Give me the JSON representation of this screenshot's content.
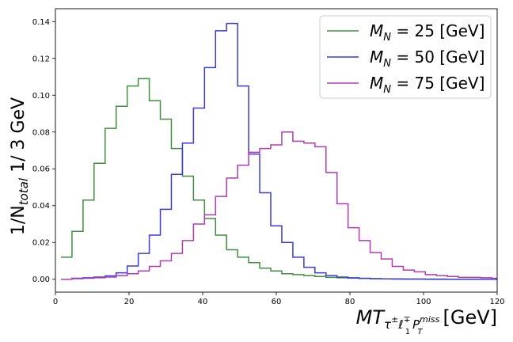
{
  "chart_data": {
    "type": "step",
    "xlabel": {
      "base": "MT",
      "sub1": "τ",
      "sub1_sup": "±",
      "sub2": "ℓ",
      "sub2_sub": "1",
      "sub2_sup": "∓",
      "sub3": "P",
      "sub3_sub": "T",
      "sub3_sup": "miss",
      "unit": "[GeV]"
    },
    "ylabel": {
      "pre": "1/N",
      "sub": "total",
      "post": " 1/ 3 GeV"
    },
    "xlim": [
      0,
      120
    ],
    "ylim": [
      -0.007,
      0.147
    ],
    "xticks": [
      "0",
      "20",
      "40",
      "60",
      "80",
      "100",
      "120"
    ],
    "yticks": [
      "0.00",
      "0.02",
      "0.04",
      "0.06",
      "0.08",
      "0.10",
      "0.12",
      "0.14"
    ],
    "legend_position": "top-right",
    "bin_edges": [
      1.5,
      4.5,
      7.5,
      10.5,
      13.5,
      16.5,
      19.5,
      22.5,
      25.5,
      28.5,
      31.5,
      34.5,
      37.5,
      40.5,
      43.5,
      46.5,
      49.5,
      52.5,
      55.5,
      58.5,
      61.5,
      64.5,
      67.5,
      70.5,
      73.5,
      76.5,
      79.5,
      82.5,
      85.5,
      88.5,
      91.5,
      94.5,
      97.5,
      100.5,
      103.5,
      106.5,
      109.5,
      112.5,
      115.5,
      118.5,
      120
    ],
    "series": [
      {
        "label_pre": "M",
        "label_sub": "N",
        "label_post": " = 25 [GeV]",
        "color": "#3f8f3f",
        "values": [
          0.012,
          0.026,
          0.043,
          0.063,
          0.082,
          0.094,
          0.105,
          0.109,
          0.097,
          0.087,
          0.071,
          0.056,
          0.043,
          0.033,
          0.024,
          0.016,
          0.012,
          0.009,
          0.006,
          0.0045,
          0.003,
          0.0025,
          0.002,
          0.0015,
          0.001,
          0.0008,
          0.0006,
          0.0004,
          0.0003,
          0.0002,
          0.0002,
          0.0001,
          0.0001,
          0.0001,
          0.0001,
          0.0,
          0.0,
          0.0,
          0.0,
          0.0
        ]
      },
      {
        "label_pre": "M",
        "label_sub": "N",
        "label_post": " = 50 [GeV]",
        "color": "#3a3adb",
        "values": [
          0.0,
          0.0005,
          0.0008,
          0.0012,
          0.0018,
          0.0035,
          0.0072,
          0.014,
          0.024,
          0.038,
          0.057,
          0.074,
          0.093,
          0.115,
          0.135,
          0.139,
          0.105,
          0.068,
          0.047,
          0.029,
          0.02,
          0.012,
          0.0065,
          0.0035,
          0.002,
          0.0012,
          0.0008,
          0.0005,
          0.0003,
          0.0002,
          0.0001,
          0.0001,
          0.0001,
          0.0,
          0.0,
          0.0,
          0.0,
          0.0,
          0.0,
          0.0
        ]
      },
      {
        "label_pre": "M",
        "label_sub": "N",
        "label_post": " = 75 [GeV]",
        "color": "#b03ab5",
        "values": [
          0.0,
          0.0003,
          0.0005,
          0.0008,
          0.0012,
          0.002,
          0.003,
          0.0045,
          0.007,
          0.01,
          0.014,
          0.021,
          0.03,
          0.035,
          0.045,
          0.055,
          0.062,
          0.069,
          0.071,
          0.073,
          0.08,
          0.075,
          0.074,
          0.072,
          0.058,
          0.041,
          0.028,
          0.021,
          0.0145,
          0.011,
          0.007,
          0.005,
          0.004,
          0.0025,
          0.002,
          0.0015,
          0.001,
          0.001,
          0.0008,
          0.0005
        ]
      }
    ]
  }
}
